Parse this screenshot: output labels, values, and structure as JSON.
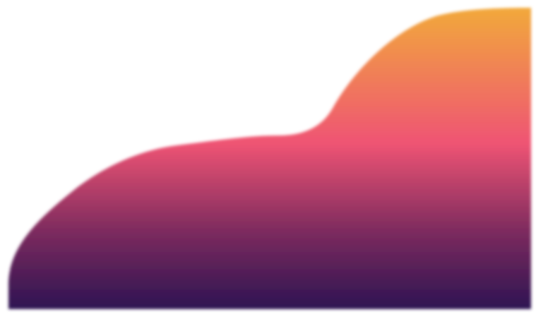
{
  "artwork": {
    "kind": "decorative gradient wave shape",
    "gradient_stops": [
      {
        "offset": 0.0,
        "color": "#f2a93b"
      },
      {
        "offset": 0.45,
        "color": "#ef5474"
      },
      {
        "offset": 0.75,
        "color": "#7a2a5e"
      },
      {
        "offset": 1.0,
        "color": "#2e1452"
      }
    ],
    "background": "#ffffff"
  }
}
